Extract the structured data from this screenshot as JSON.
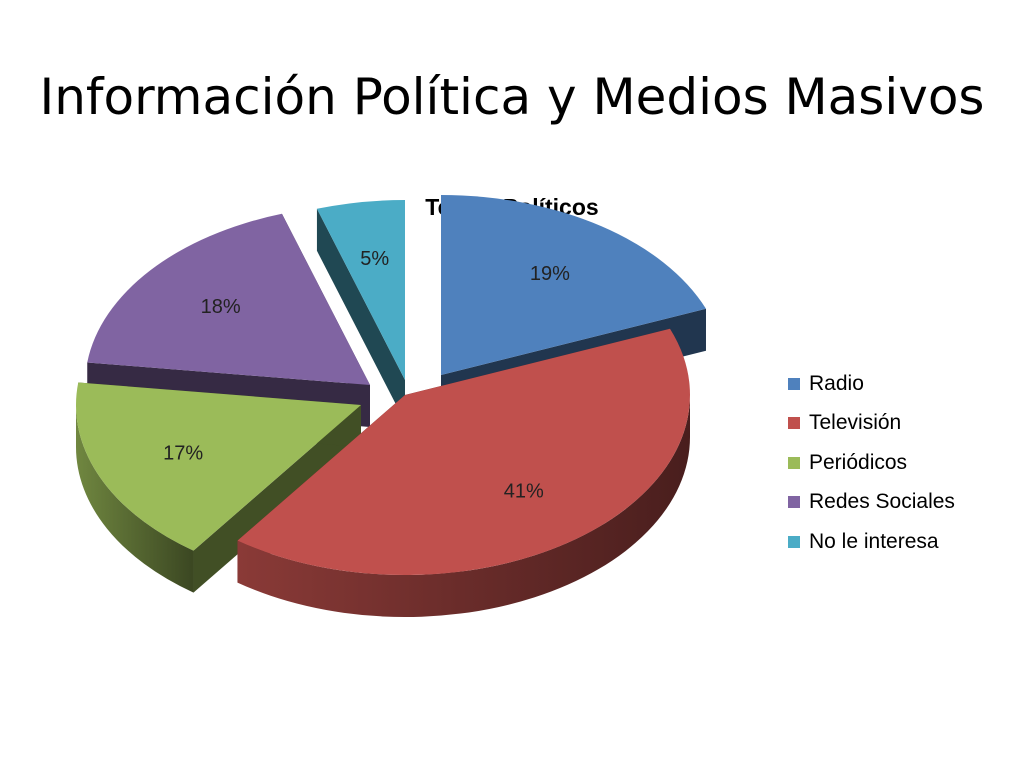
{
  "slide": {
    "title": "Información Política y Medios Masivos"
  },
  "chart_data": {
    "type": "pie",
    "title": "Temas Políticos",
    "categories": [
      "Radio",
      "Televisión",
      "Periódicos",
      "Redes Sociales",
      "No le interesa"
    ],
    "values": [
      19,
      41,
      17,
      18,
      5
    ],
    "labels": [
      "19%",
      "41%",
      "17%",
      "18%",
      "5%"
    ],
    "colors": [
      "#4f81bd",
      "#c0504d",
      "#9bbb59",
      "#8064a2",
      "#4bacc6"
    ],
    "style": "3d-exploded",
    "legend": "right"
  }
}
